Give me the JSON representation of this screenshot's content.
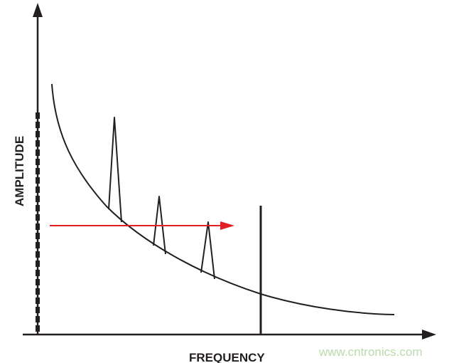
{
  "diagram": {
    "y_axis_label": "AMPLITUDE",
    "x_axis_label": "FREQUENCY",
    "watermark": "www.cntronics.com",
    "colors": {
      "line": "#231f20",
      "arrow": "#e31e24",
      "watermark": "#b9dcae"
    }
  }
}
